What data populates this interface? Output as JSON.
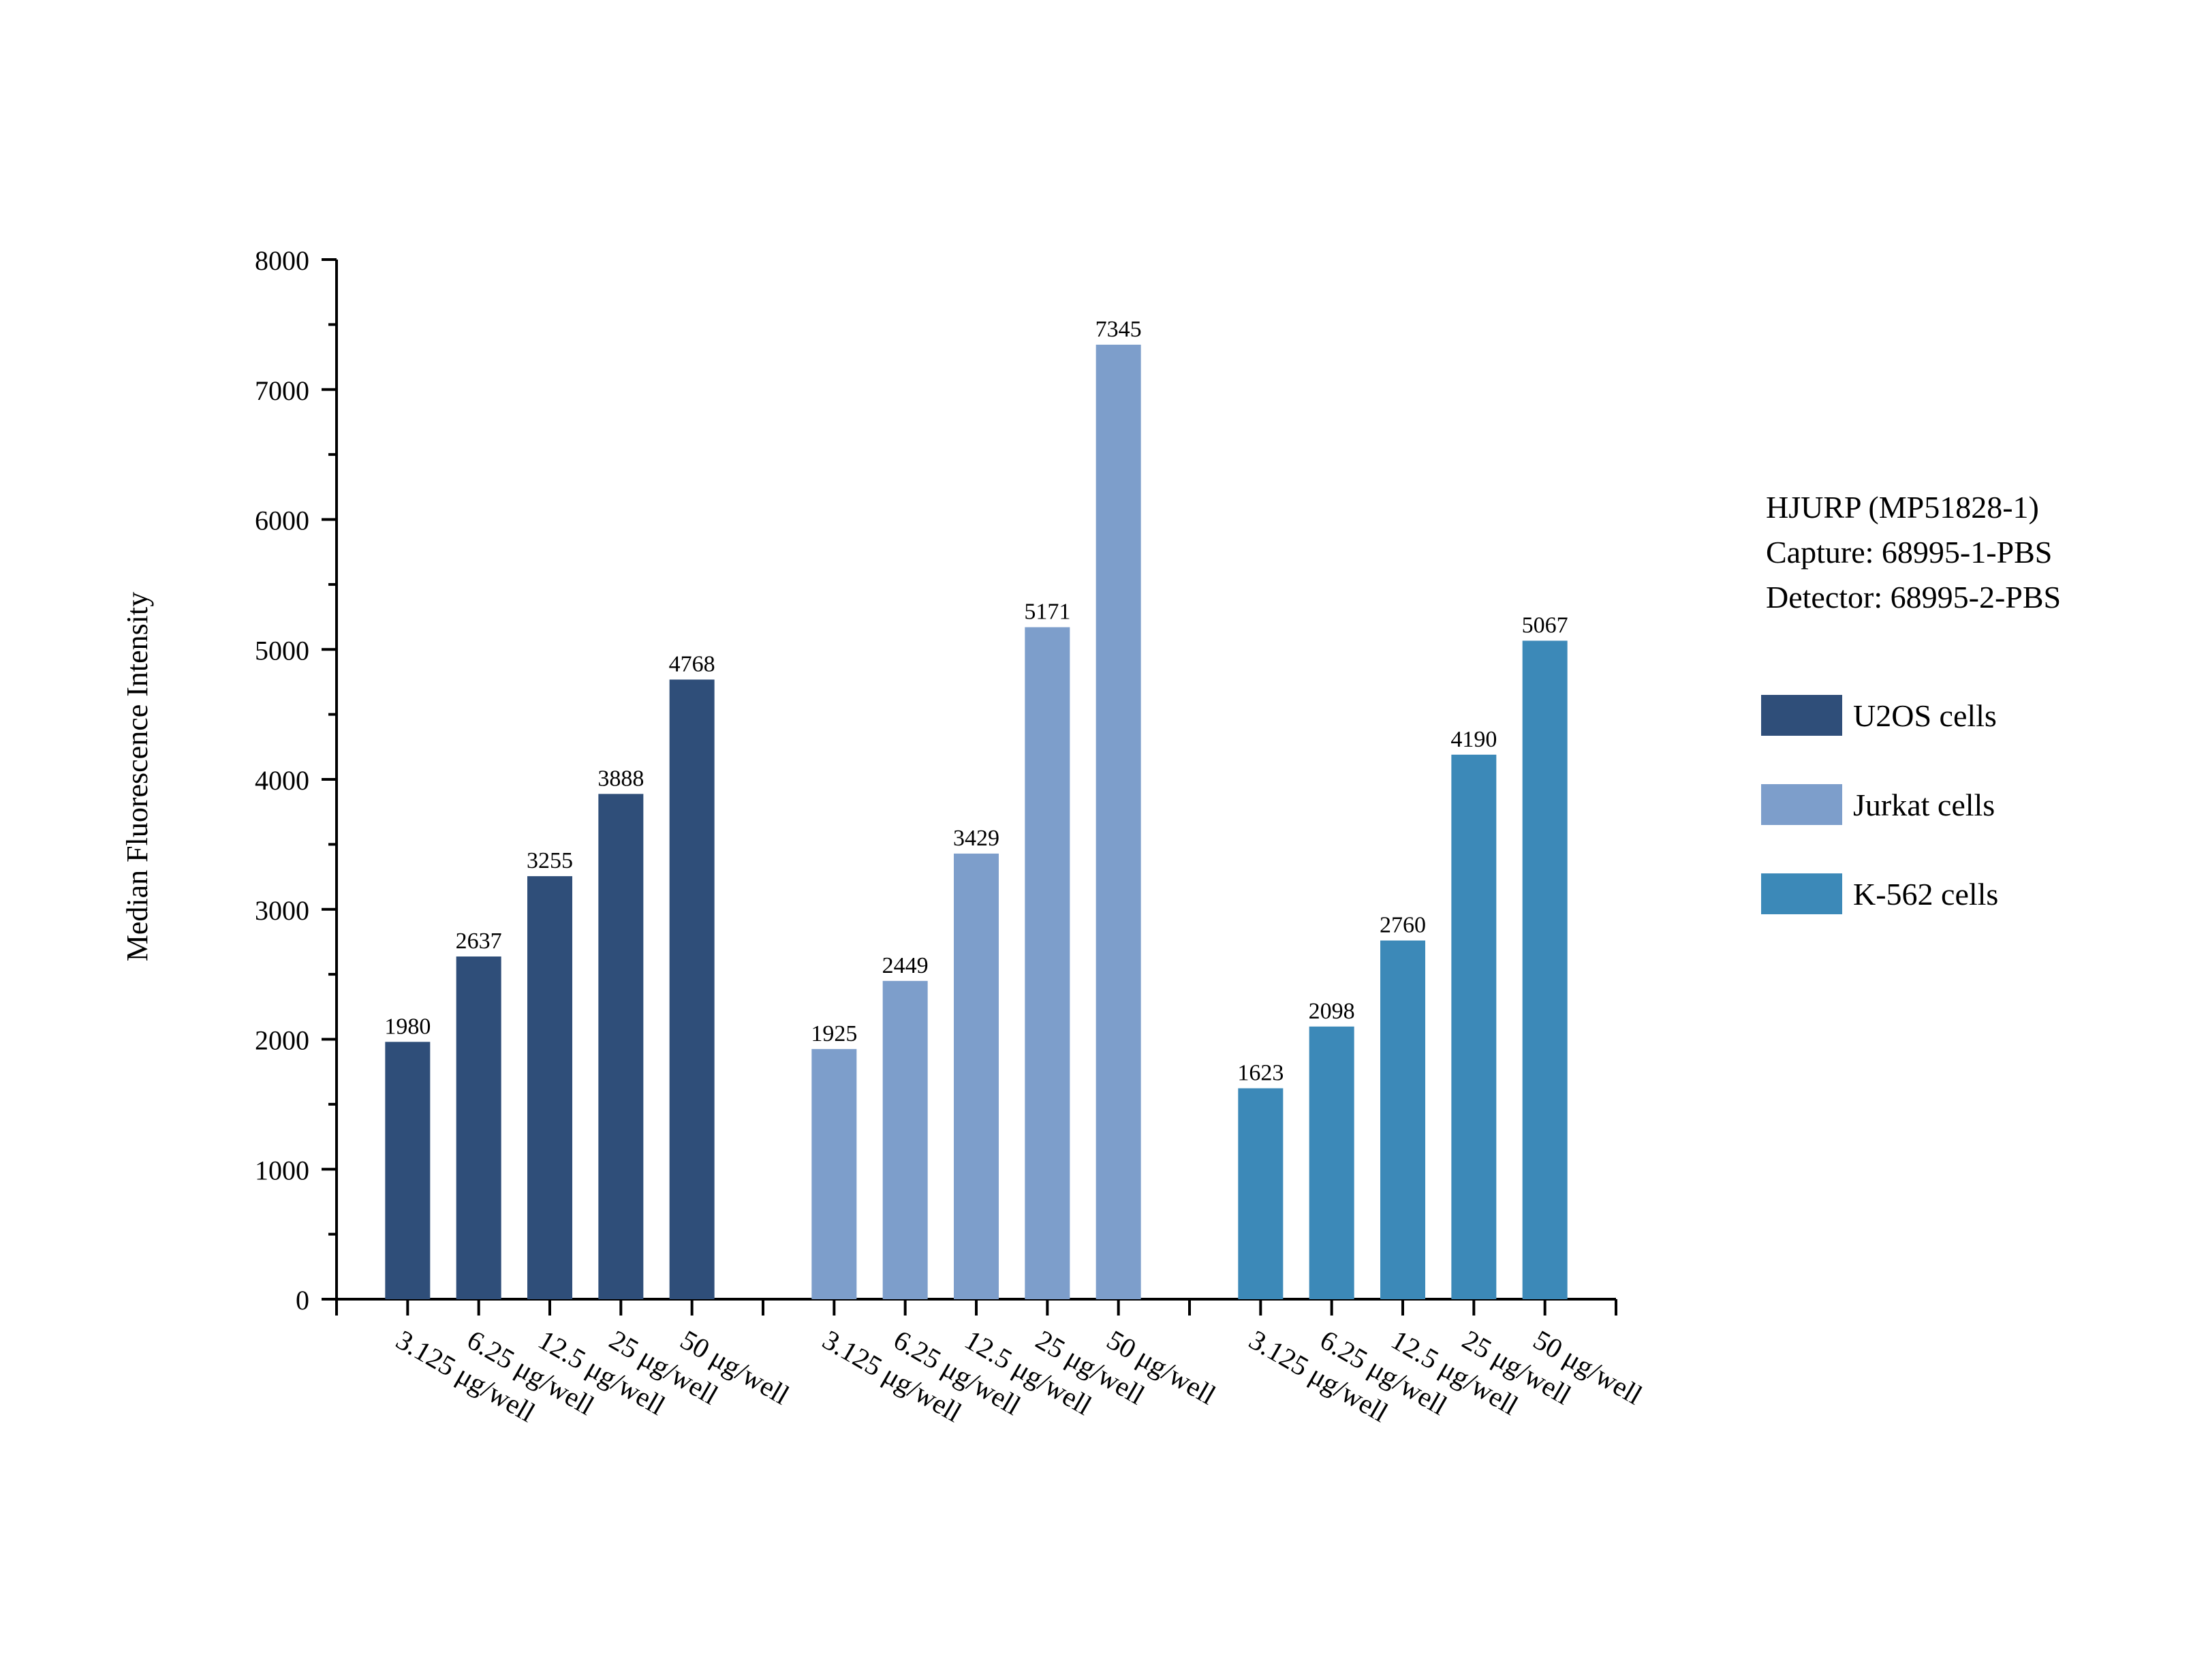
{
  "chart_data": {
    "type": "bar",
    "title": "",
    "xlabel": "",
    "ylabel": "Median Fluorescence Intensity",
    "ylim": [
      0,
      8000
    ],
    "yticks": [
      0,
      1000,
      2000,
      3000,
      4000,
      5000,
      6000,
      7000,
      8000
    ],
    "grid": false,
    "annotation": [
      "HJURP (MP51828-1)",
      "Capture: 68995-1-PBS",
      "Detector: 68995-2-PBS"
    ],
    "legend_position": "right",
    "categories": [
      "3.125 μg/well",
      "6.25 μg/well",
      "12.5 μg/well",
      "25 μg/well",
      "50 μg/well"
    ],
    "series": [
      {
        "name": "U2OS cells",
        "color": "#2f4e79",
        "values": [
          1980,
          2637,
          3255,
          3888,
          4768
        ]
      },
      {
        "name": "Jurkat cells",
        "color": "#7d9ecb",
        "values": [
          1925,
          2449,
          3429,
          5171,
          7345
        ]
      },
      {
        "name": "K-562 cells",
        "color": "#3c89b8",
        "values": [
          1623,
          2098,
          2760,
          4190,
          5067
        ]
      }
    ]
  }
}
